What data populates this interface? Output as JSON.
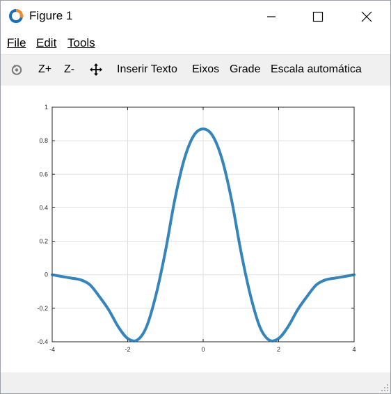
{
  "window": {
    "title": "Figure 1",
    "controls": [
      "minimize",
      "maximize",
      "close"
    ]
  },
  "menu": {
    "file": "File",
    "edit": "Edit",
    "tools": "Tools"
  },
  "toolbar": {
    "rotate_icon": "rotate-icon",
    "zoom_in": "Z+",
    "zoom_out": "Z-",
    "pan_icon": "pan-icon",
    "insert_text": "Inserir Texto",
    "axes": "Eixos",
    "grid": "Grade",
    "autoscale": "Escala automática"
  },
  "chart_data": {
    "type": "line",
    "title": "",
    "xlabel": "",
    "ylabel": "",
    "xlim": [
      -4,
      4
    ],
    "ylim": [
      -0.4,
      1
    ],
    "xticks": [
      -4,
      -2,
      0,
      2,
      4
    ],
    "yticks": [
      -0.4,
      -0.2,
      0,
      0.2,
      0.4,
      0.6,
      0.8,
      1
    ],
    "grid": true,
    "line_color": "#1f77b4",
    "series": [
      {
        "name": "",
        "x": [
          -4,
          -3.75,
          -3.5,
          -3.25,
          -3,
          -2.75,
          -2.5,
          -2.25,
          -2,
          -1.75,
          -1.5,
          -1.25,
          -1,
          -0.75,
          -0.5,
          -0.25,
          0,
          0.25,
          0.5,
          0.75,
          1,
          1.25,
          1.5,
          1.75,
          2,
          2.25,
          2.5,
          2.75,
          3,
          3.25,
          3.5,
          3.75,
          4
        ],
        "y": [
          0,
          -0.01,
          -0.02,
          -0.03,
          -0.06,
          -0.13,
          -0.21,
          -0.31,
          -0.38,
          -0.39,
          -0.31,
          -0.12,
          0.14,
          0.45,
          0.69,
          0.83,
          0.87,
          0.83,
          0.69,
          0.45,
          0.14,
          -0.12,
          -0.31,
          -0.39,
          -0.38,
          -0.31,
          -0.21,
          -0.13,
          -0.06,
          -0.03,
          -0.02,
          -0.01,
          0
        ]
      }
    ]
  }
}
